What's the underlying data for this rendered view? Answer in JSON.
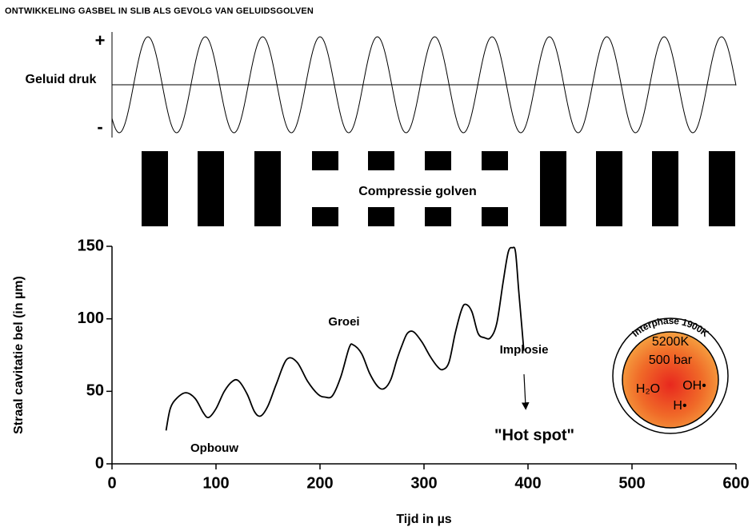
{
  "chart_data": {
    "type": "line",
    "title": "ONTWIKKELING GASBEL IN SLIB ALS GEVOLG VAN GELUIDSGOLVEN",
    "pressure_label": "Geluid druk",
    "plus_label": "+",
    "minus_label": "-",
    "compression_label": "Compressie golven",
    "x_label": "Tijd in µs",
    "y_label": "Straal cavitatie bel (in µm)",
    "xlim": [
      0,
      600
    ],
    "ylim": [
      0,
      150
    ],
    "xticks": [
      0,
      100,
      200,
      300,
      400,
      500,
      600
    ],
    "yticks": [
      0,
      50,
      100,
      150
    ],
    "color": "#000000",
    "x": [
      52,
      56,
      62,
      71,
      80,
      88,
      93,
      100,
      108,
      116,
      122,
      130,
      137,
      143,
      150,
      158,
      168,
      178,
      188,
      198,
      205,
      212,
      220,
      228,
      232,
      240,
      248,
      256,
      262,
      268,
      274,
      279,
      284,
      290,
      298,
      306,
      313,
      318,
      324,
      330,
      336,
      340,
      346,
      352,
      358,
      364,
      370,
      376,
      381,
      385,
      388,
      391,
      394,
      396
    ],
    "values": [
      23,
      38,
      45,
      49,
      45,
      35,
      32,
      38,
      50,
      57,
      57,
      48,
      36,
      33,
      40,
      55,
      72,
      70,
      57,
      48,
      46,
      47,
      60,
      80,
      82,
      76,
      62,
      53,
      52,
      58,
      72,
      82,
      90,
      91,
      84,
      74,
      67,
      65,
      70,
      90,
      106,
      110,
      105,
      90,
      87,
      87,
      97,
      125,
      146,
      149,
      146,
      120,
      95,
      78
    ],
    "annotations": [
      "Opbouw",
      "Groei",
      "Implosie",
      "\"Hot spot\""
    ],
    "hot_spot": {
      "ring": "Interphase 1900K",
      "core": [
        "5200K",
        "500 bar",
        "H₂O",
        "OH•",
        "H•"
      ]
    }
  }
}
